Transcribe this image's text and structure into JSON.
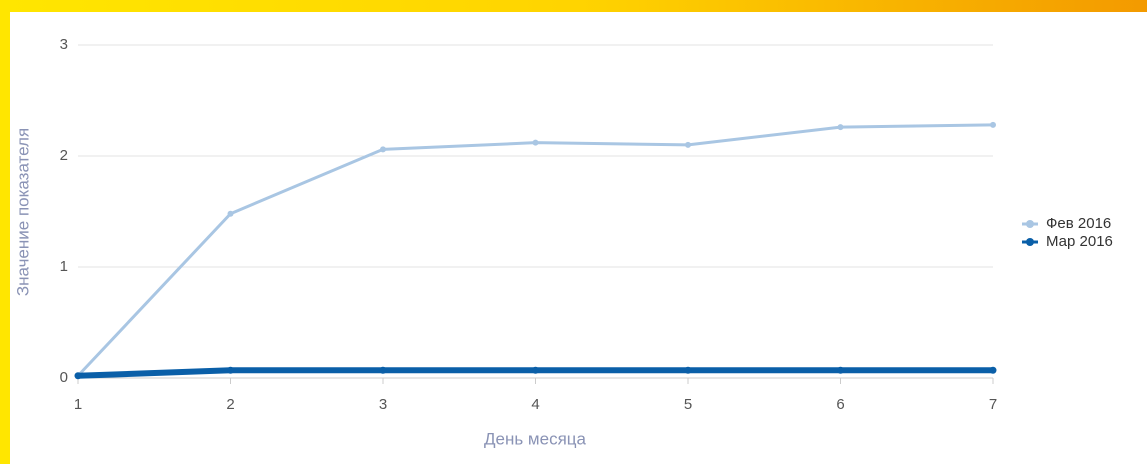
{
  "chart_data": {
    "type": "line",
    "xlabel": "День месяца",
    "ylabel": "Значение показателя",
    "x": [
      1,
      2,
      3,
      4,
      5,
      6,
      7
    ],
    "series": [
      {
        "name": "Фев 2016",
        "color": "#a9c6e3",
        "values": [
          0.02,
          1.48,
          2.06,
          2.12,
          2.1,
          2.26,
          2.28
        ]
      },
      {
        "name": "Мар 2016",
        "color": "#0a5fa8",
        "values": [
          0.02,
          0.07,
          0.07,
          0.07,
          0.07,
          0.07,
          0.07
        ]
      }
    ],
    "xlim": [
      1,
      7
    ],
    "xticks": [
      1,
      2,
      3,
      4,
      5,
      6,
      7
    ],
    "ylim": [
      0,
      3
    ],
    "yticks": [
      0,
      1,
      2,
      3
    ],
    "grid": true,
    "legend": "right"
  }
}
